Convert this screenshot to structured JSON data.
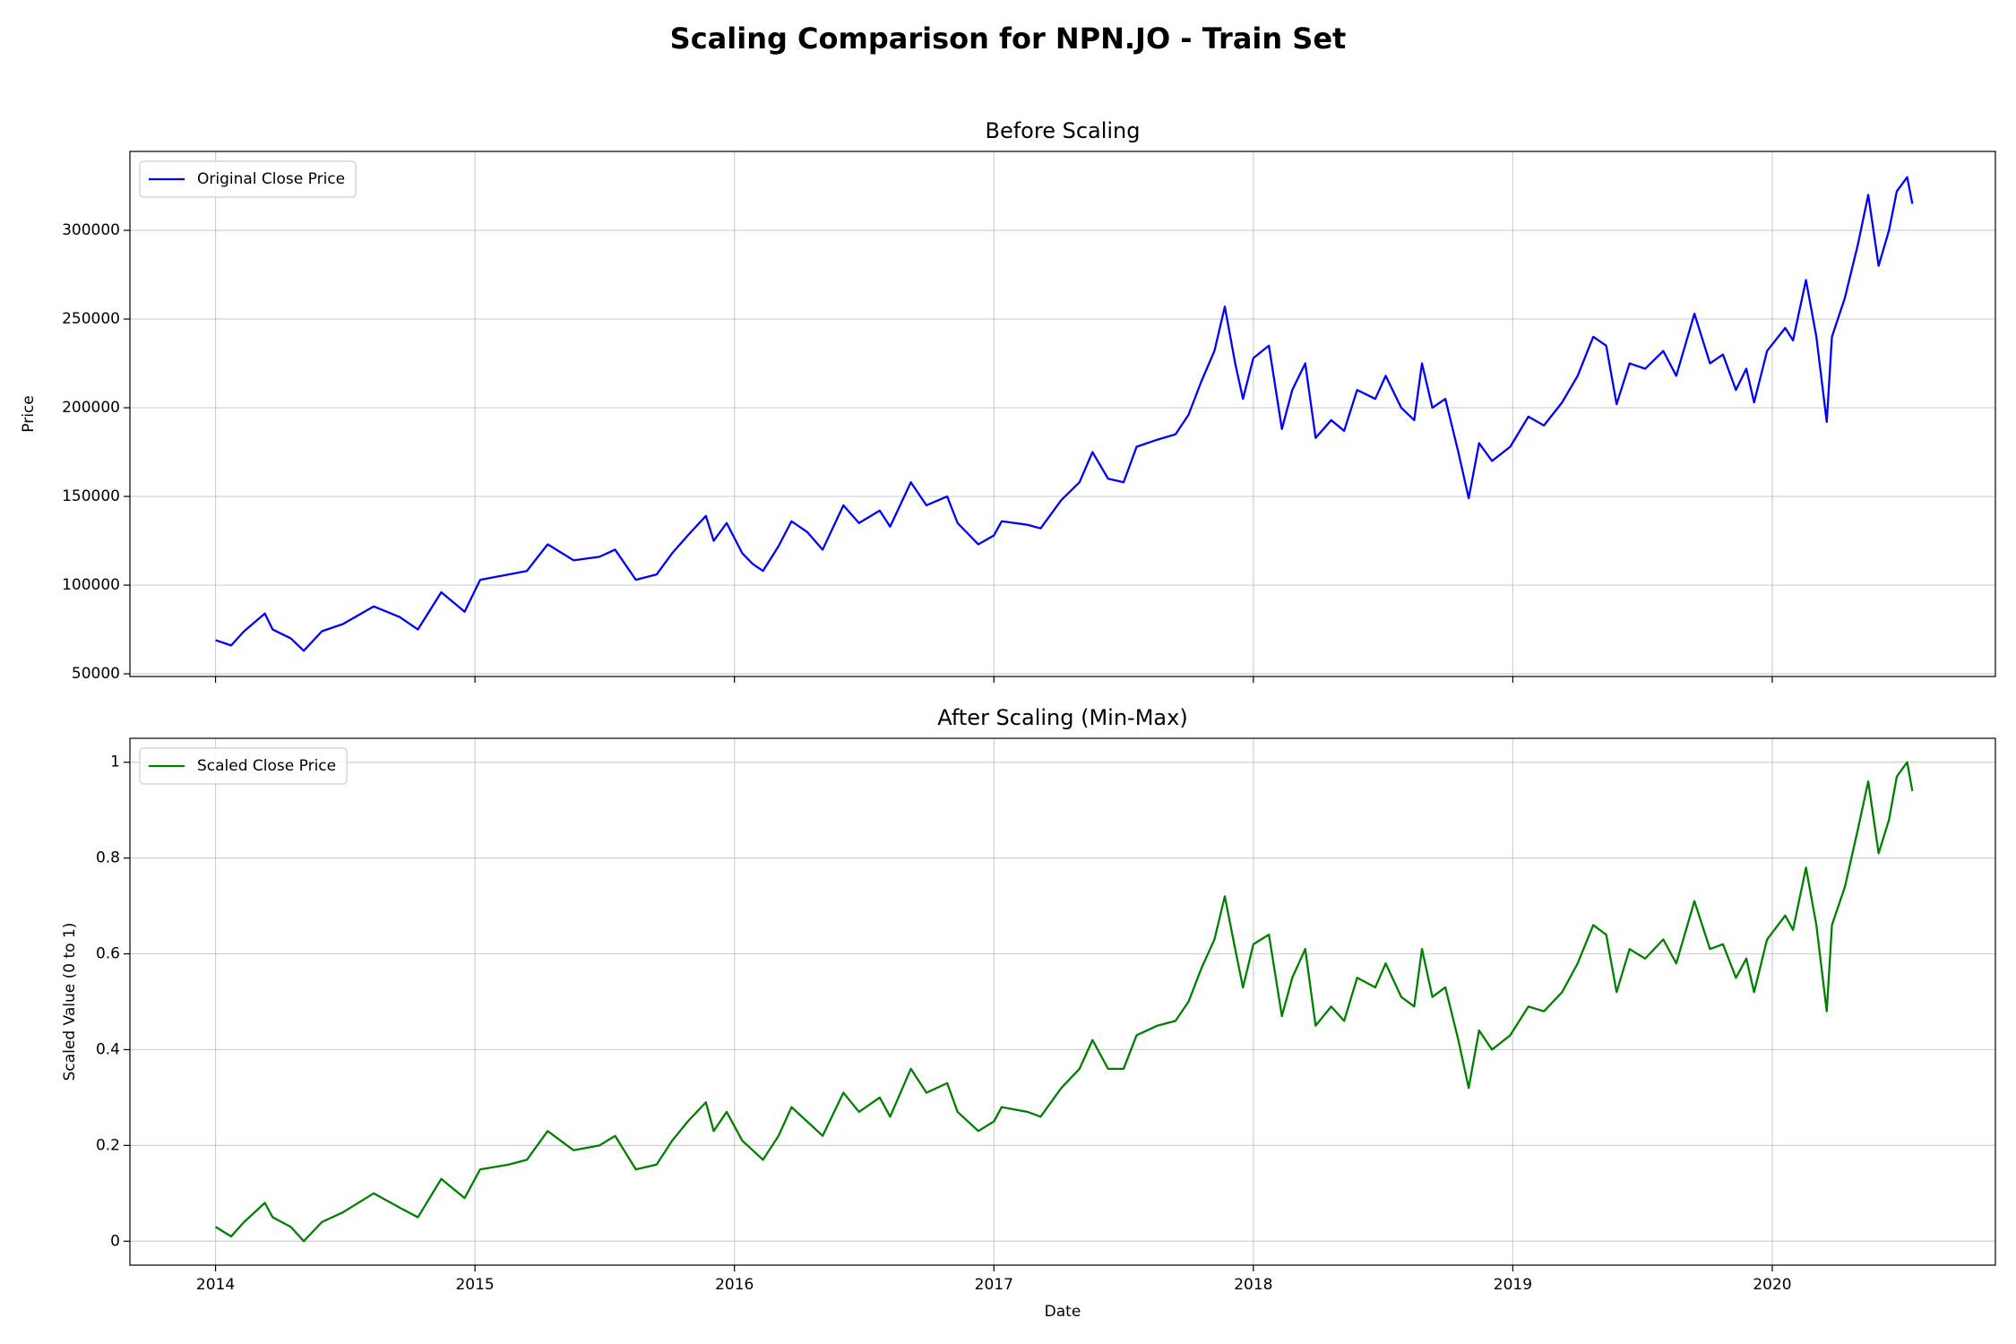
{
  "title": "Scaling Comparison for NPN.JO - Train Set",
  "chart_data": [
    {
      "type": "line",
      "title": "Before Scaling",
      "ylabel": "Price",
      "x_tick_labels": false,
      "x": [
        2014.0,
        2014.06,
        2014.11,
        2014.19,
        2014.22,
        2014.29,
        2014.34,
        2014.41,
        2014.49,
        2014.61,
        2014.71,
        2014.78,
        2014.87,
        2014.96,
        2015.02,
        2015.13,
        2015.2,
        2015.28,
        2015.38,
        2015.48,
        2015.54,
        2015.62,
        2015.7,
        2015.76,
        2015.82,
        2015.89,
        2015.92,
        2015.97,
        2016.03,
        2016.07,
        2016.11,
        2016.17,
        2016.22,
        2016.28,
        2016.34,
        2016.42,
        2016.48,
        2016.56,
        2016.6,
        2016.68,
        2016.74,
        2016.82,
        2016.86,
        2016.94,
        2017.0,
        2017.03,
        2017.13,
        2017.18,
        2017.26,
        2017.33,
        2017.38,
        2017.44,
        2017.5,
        2017.55,
        2017.63,
        2017.7,
        2017.75,
        2017.8,
        2017.85,
        2017.89,
        2017.93,
        2017.96,
        2018.0,
        2018.06,
        2018.11,
        2018.15,
        2018.2,
        2018.24,
        2018.3,
        2018.35,
        2018.4,
        2018.47,
        2018.51,
        2018.57,
        2018.62,
        2018.65,
        2018.69,
        2018.74,
        2018.79,
        2018.83,
        2018.87,
        2018.92,
        2018.99,
        2019.06,
        2019.12,
        2019.19,
        2019.25,
        2019.31,
        2019.36,
        2019.4,
        2019.45,
        2019.51,
        2019.58,
        2019.63,
        2019.7,
        2019.76,
        2019.81,
        2019.86,
        2019.9,
        2019.93,
        2019.98,
        2020.05,
        2020.08,
        2020.13,
        2020.17,
        2020.21,
        2020.23,
        2020.28,
        2020.33,
        2020.37,
        2020.41,
        2020.45,
        2020.48,
        2020.52,
        2020.54
      ],
      "series": [
        {
          "name": "Original Close Price",
          "color": "#0000ff",
          "values": [
            69000,
            66000,
            74000,
            84000,
            75000,
            70000,
            63000,
            74000,
            78000,
            88000,
            82000,
            75000,
            96000,
            85000,
            103000,
            106000,
            108000,
            123000,
            114000,
            116000,
            120000,
            103000,
            106000,
            118000,
            128000,
            139000,
            125000,
            135000,
            118000,
            112000,
            108000,
            122000,
            136000,
            130000,
            120000,
            145000,
            135000,
            142000,
            133000,
            158000,
            145000,
            150000,
            135000,
            123000,
            128000,
            136000,
            134000,
            132000,
            148000,
            158000,
            175000,
            160000,
            158000,
            178000,
            182000,
            185000,
            196000,
            215000,
            232000,
            257000,
            225000,
            205000,
            228000,
            235000,
            188000,
            210000,
            225000,
            183000,
            193000,
            187000,
            210000,
            205000,
            218000,
            200000,
            193000,
            225000,
            200000,
            205000,
            175000,
            149000,
            180000,
            170000,
            178000,
            195000,
            190000,
            203000,
            218000,
            240000,
            235000,
            202000,
            225000,
            222000,
            232000,
            218000,
            253000,
            225000,
            230000,
            210000,
            222000,
            203000,
            232000,
            245000,
            238000,
            272000,
            240000,
            192000,
            240000,
            262000,
            292000,
            320000,
            280000,
            300000,
            322000,
            330000,
            315000
          ]
        }
      ],
      "xlim": [
        2013.67,
        2020.86
      ],
      "xticks": [
        2014,
        2015,
        2016,
        2017,
        2018,
        2019,
        2020
      ],
      "ylim": [
        48500,
        344500
      ],
      "yticks": [
        50000,
        100000,
        150000,
        200000,
        250000,
        300000
      ],
      "grid": true,
      "legend": "upper left"
    },
    {
      "type": "line",
      "title": "After Scaling (Min-Max)",
      "xlabel": "Date",
      "ylabel": "Scaled Value (0 to 1)",
      "x_tick_labels": true,
      "x": [
        2014.0,
        2014.06,
        2014.11,
        2014.19,
        2014.22,
        2014.29,
        2014.34,
        2014.41,
        2014.49,
        2014.61,
        2014.71,
        2014.78,
        2014.87,
        2014.96,
        2015.02,
        2015.13,
        2015.2,
        2015.28,
        2015.38,
        2015.48,
        2015.54,
        2015.62,
        2015.7,
        2015.76,
        2015.82,
        2015.89,
        2015.92,
        2015.97,
        2016.03,
        2016.07,
        2016.11,
        2016.17,
        2016.22,
        2016.28,
        2016.34,
        2016.42,
        2016.48,
        2016.56,
        2016.6,
        2016.68,
        2016.74,
        2016.82,
        2016.86,
        2016.94,
        2017.0,
        2017.03,
        2017.13,
        2017.18,
        2017.26,
        2017.33,
        2017.38,
        2017.44,
        2017.5,
        2017.55,
        2017.63,
        2017.7,
        2017.75,
        2017.8,
        2017.85,
        2017.89,
        2017.93,
        2017.96,
        2018.0,
        2018.06,
        2018.11,
        2018.15,
        2018.2,
        2018.24,
        2018.3,
        2018.35,
        2018.4,
        2018.47,
        2018.51,
        2018.57,
        2018.62,
        2018.65,
        2018.69,
        2018.74,
        2018.79,
        2018.83,
        2018.87,
        2018.92,
        2018.99,
        2019.06,
        2019.12,
        2019.19,
        2019.25,
        2019.31,
        2019.36,
        2019.4,
        2019.45,
        2019.51,
        2019.58,
        2019.63,
        2019.7,
        2019.76,
        2019.81,
        2019.86,
        2019.9,
        2019.93,
        2019.98,
        2020.05,
        2020.08,
        2020.13,
        2020.17,
        2020.21,
        2020.23,
        2020.28,
        2020.33,
        2020.37,
        2020.41,
        2020.45,
        2020.48,
        2020.52,
        2020.54
      ],
      "series": [
        {
          "name": "Scaled Close Price",
          "color": "#008000",
          "values": [
            0.03,
            0.01,
            0.04,
            0.08,
            0.05,
            0.03,
            0.0,
            0.04,
            0.06,
            0.1,
            0.07,
            0.05,
            0.13,
            0.09,
            0.15,
            0.16,
            0.17,
            0.23,
            0.19,
            0.2,
            0.22,
            0.15,
            0.16,
            0.21,
            0.25,
            0.29,
            0.23,
            0.27,
            0.21,
            0.19,
            0.17,
            0.22,
            0.28,
            0.25,
            0.22,
            0.31,
            0.27,
            0.3,
            0.26,
            0.36,
            0.31,
            0.33,
            0.27,
            0.23,
            0.25,
            0.28,
            0.27,
            0.26,
            0.32,
            0.36,
            0.42,
            0.36,
            0.36,
            0.43,
            0.45,
            0.46,
            0.5,
            0.57,
            0.63,
            0.72,
            0.61,
            0.53,
            0.62,
            0.64,
            0.47,
            0.55,
            0.61,
            0.45,
            0.49,
            0.46,
            0.55,
            0.53,
            0.58,
            0.51,
            0.49,
            0.61,
            0.51,
            0.53,
            0.42,
            0.32,
            0.44,
            0.4,
            0.43,
            0.49,
            0.48,
            0.52,
            0.58,
            0.66,
            0.64,
            0.52,
            0.61,
            0.59,
            0.63,
            0.58,
            0.71,
            0.61,
            0.62,
            0.55,
            0.59,
            0.52,
            0.63,
            0.68,
            0.65,
            0.78,
            0.66,
            0.48,
            0.66,
            0.74,
            0.86,
            0.96,
            0.81,
            0.88,
            0.97,
            1.0,
            0.94
          ]
        }
      ],
      "xlim": [
        2013.67,
        2020.86
      ],
      "xticks": [
        2014,
        2015,
        2016,
        2017,
        2018,
        2019,
        2020
      ],
      "ylim": [
        -0.05,
        1.05
      ],
      "yticks": [
        0.0,
        0.2,
        0.4,
        0.6,
        0.8,
        1.0
      ],
      "grid": true,
      "legend": "upper left"
    }
  ]
}
